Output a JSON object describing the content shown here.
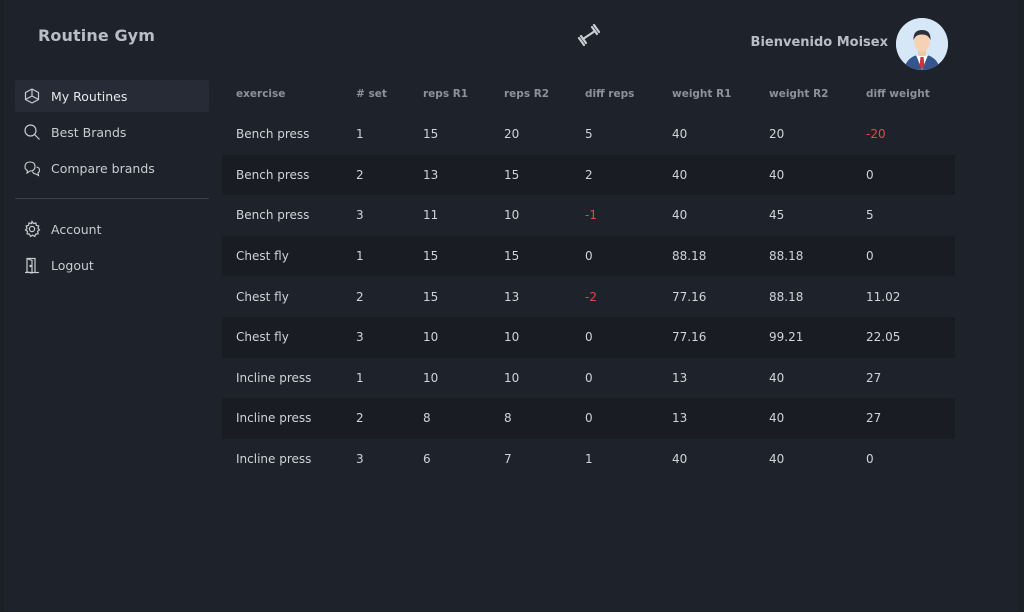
{
  "app": {
    "title": "Routine Gym"
  },
  "header": {
    "welcome": "Bienvenido Moisex"
  },
  "sidebar": {
    "items": [
      {
        "label": "My Routines",
        "icon": "cube-icon",
        "active": true
      },
      {
        "label": "Best Brands",
        "icon": "search-icon",
        "active": false
      },
      {
        "label": "Compare brands",
        "icon": "chat-icon",
        "active": false
      }
    ],
    "secondary": [
      {
        "label": "Account",
        "icon": "gear-icon"
      },
      {
        "label": "Logout",
        "icon": "door-icon"
      }
    ]
  },
  "table": {
    "headers": [
      "exercise",
      "# set",
      "reps R1",
      "reps R2",
      "diff reps",
      "weight R1",
      "weight R2",
      "diff weight"
    ],
    "rows": [
      [
        "Bench press",
        "1",
        "15",
        "20",
        "5",
        "40",
        "20",
        "-20"
      ],
      [
        "Bench press",
        "2",
        "13",
        "15",
        "2",
        "40",
        "40",
        "0"
      ],
      [
        "Bench press",
        "3",
        "11",
        "10",
        "-1",
        "40",
        "45",
        "5"
      ],
      [
        "Chest fly",
        "1",
        "15",
        "15",
        "0",
        "88.18",
        "88.18",
        "0"
      ],
      [
        "Chest fly",
        "2",
        "15",
        "13",
        "-2",
        "77.16",
        "88.18",
        "11.02"
      ],
      [
        "Chest fly",
        "3",
        "10",
        "10",
        "0",
        "77.16",
        "99.21",
        "22.05"
      ],
      [
        "Incline press",
        "1",
        "10",
        "10",
        "0",
        "13",
        "40",
        "27"
      ],
      [
        "Incline press",
        "2",
        "8",
        "8",
        "0",
        "13",
        "40",
        "27"
      ],
      [
        "Incline press",
        "3",
        "6",
        "7",
        "1",
        "40",
        "40",
        "0"
      ]
    ]
  },
  "colors": {
    "negative": "#e0494b",
    "background": "#1e222a",
    "active_nav": "#262b35"
  }
}
